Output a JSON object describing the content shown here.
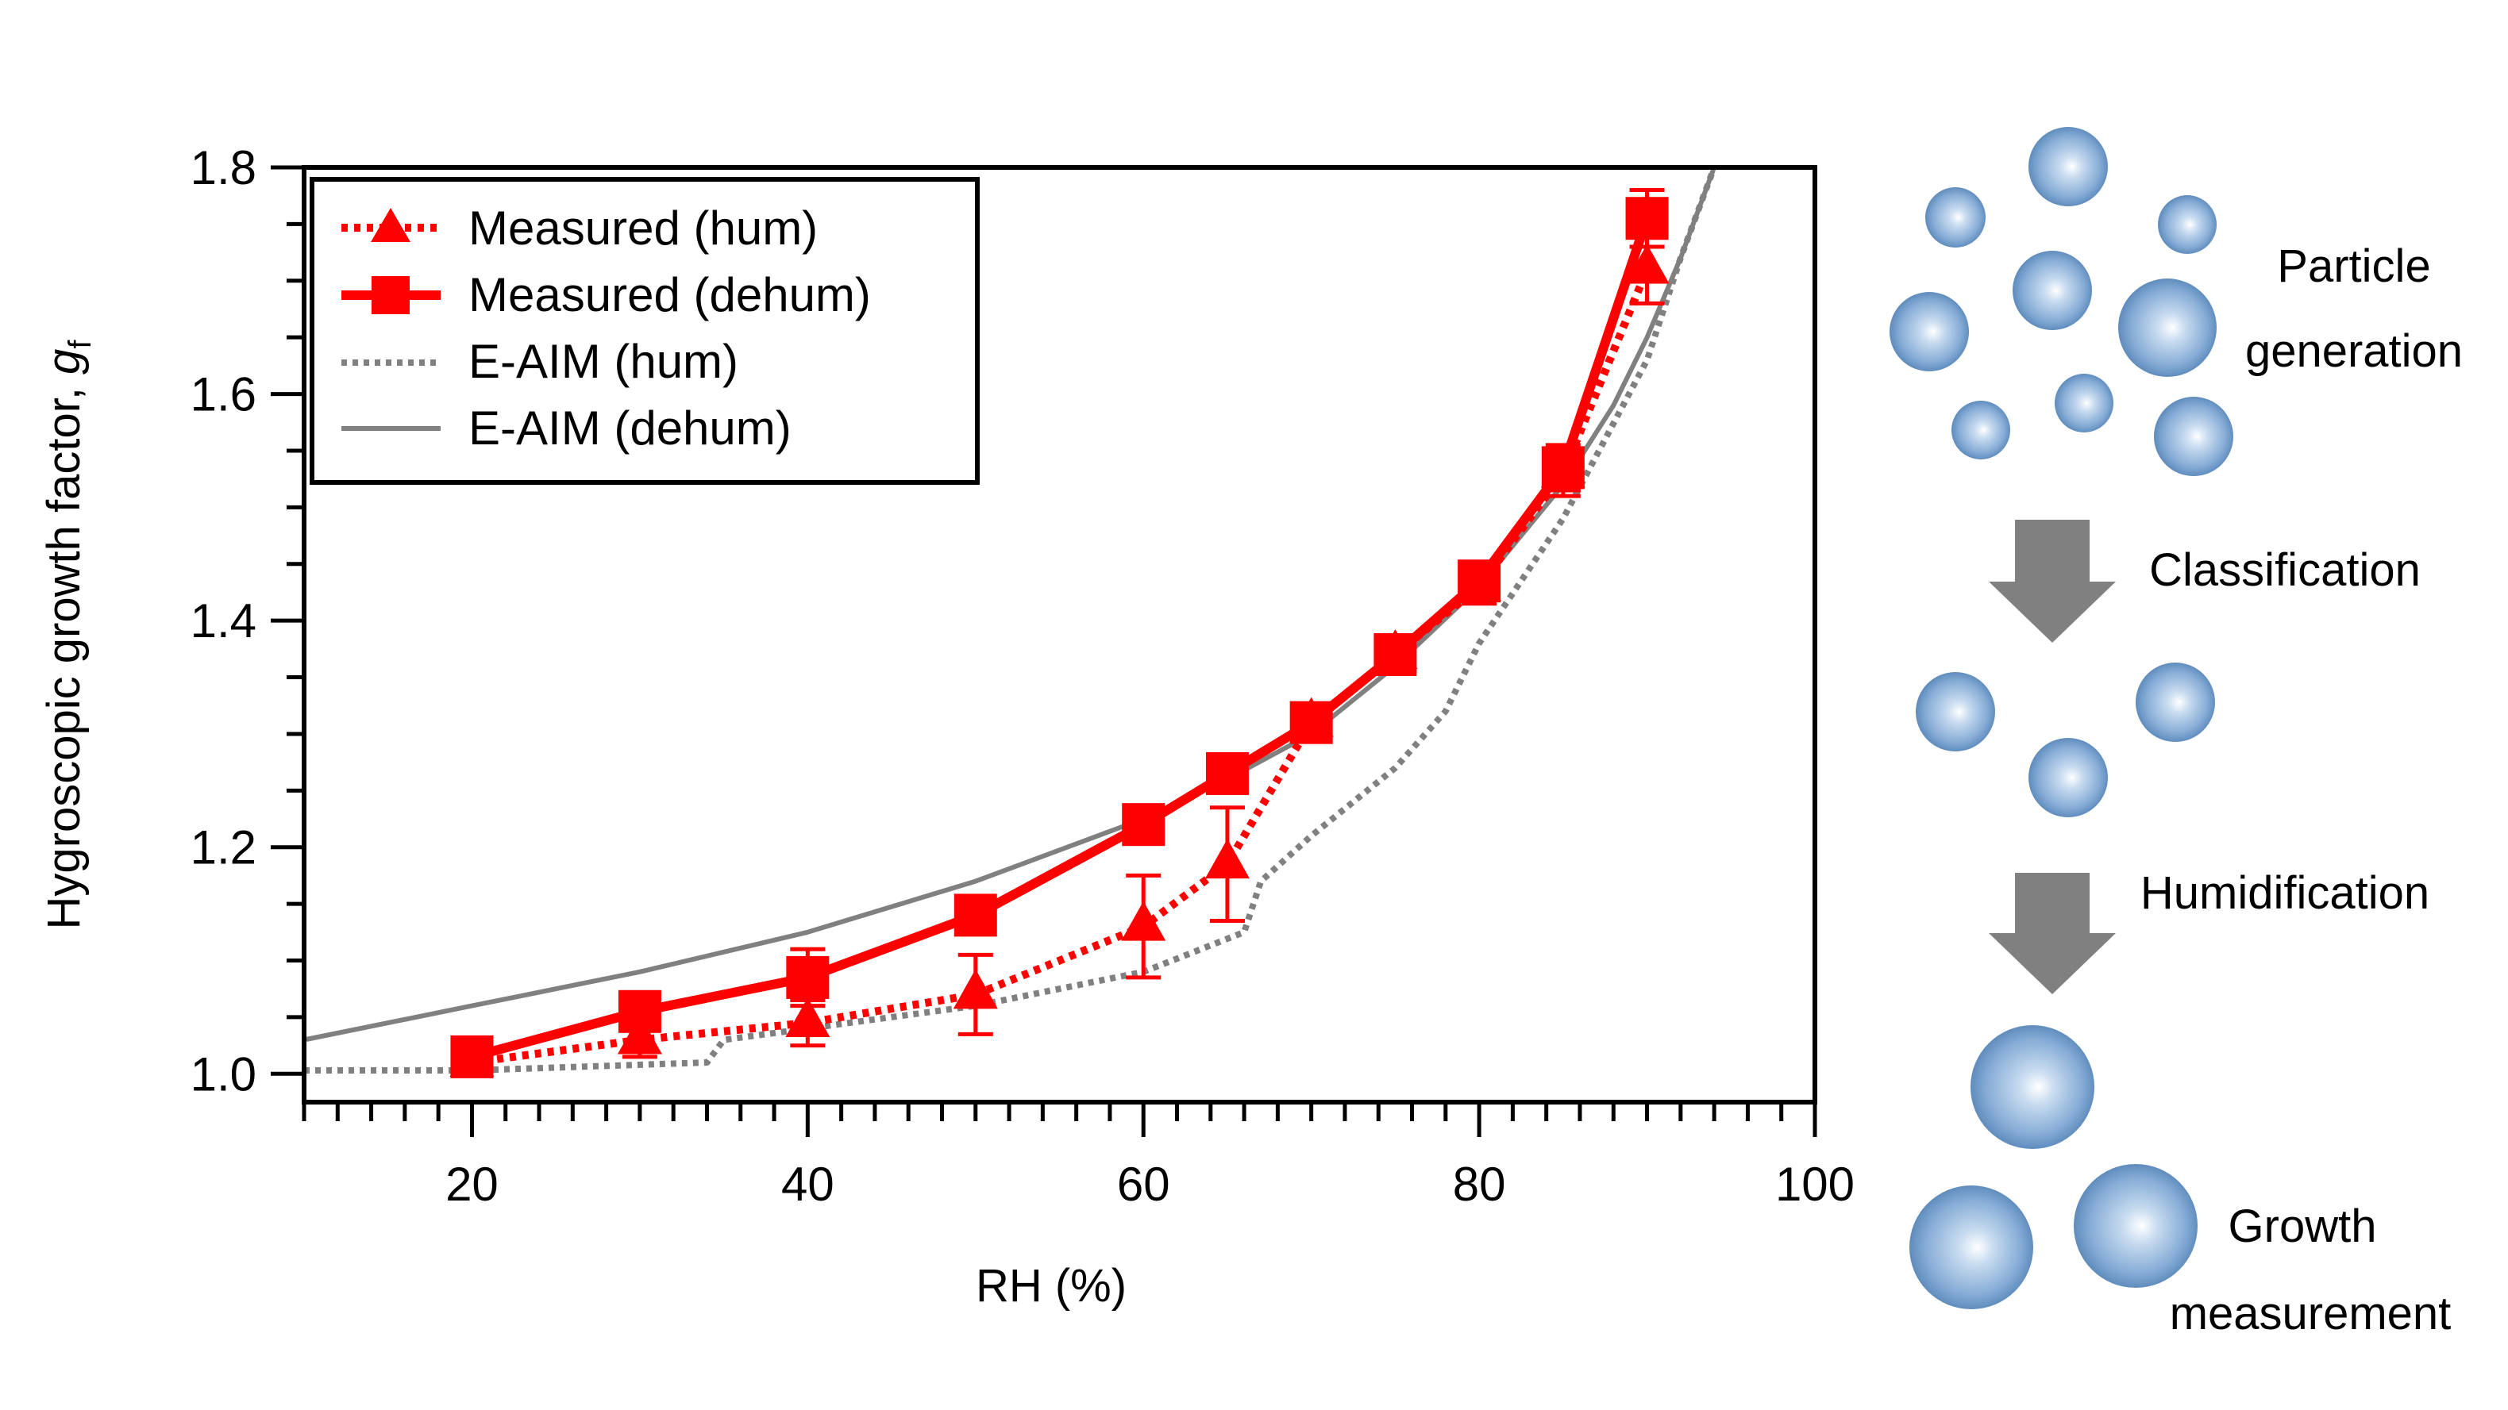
{
  "chart_data": {
    "type": "line",
    "xlabel": "RH (%)",
    "ylabel": "Hygroscopic growth factor, ",
    "ylabel_symbol": "g",
    "ylabel_subscript": "f",
    "xlim": [
      10,
      100
    ],
    "ylim": [
      0.975,
      1.8
    ],
    "xticks": [
      "20",
      "40",
      "60",
      "80",
      "100"
    ],
    "yticks": [
      "1.0",
      "1.2",
      "1.4",
      "1.6",
      "1.8"
    ],
    "grid": false,
    "legend_position": "top-left",
    "series": [
      {
        "name": "Measured (hum)",
        "style": "dotted",
        "marker": "triangle",
        "color": "#ff0000",
        "points": [
          {
            "x": 20,
            "y": 1.01,
            "err": 0.01
          },
          {
            "x": 30,
            "y": 1.03,
            "err": 0.015
          },
          {
            "x": 40,
            "y": 1.045,
            "err": 0.02
          },
          {
            "x": 50,
            "y": 1.07,
            "err": 0.035
          },
          {
            "x": 60,
            "y": 1.13,
            "err": 0.045
          },
          {
            "x": 65,
            "y": 1.185,
            "err": 0.05
          },
          {
            "x": 70,
            "y": 1.31,
            "err": 0.015
          },
          {
            "x": 75,
            "y": 1.37,
            "err": 0.015
          },
          {
            "x": 80,
            "y": 1.43,
            "err": 0.015
          },
          {
            "x": 85,
            "y": 1.53,
            "err": 0.02
          },
          {
            "x": 90,
            "y": 1.71,
            "err": 0.03
          }
        ]
      },
      {
        "name": "Measured (dehum)",
        "style": "solid",
        "marker": "square",
        "color": "#ff0000",
        "points": [
          {
            "x": 20,
            "y": 1.015,
            "err": 0.01
          },
          {
            "x": 30,
            "y": 1.055,
            "err": 0.015
          },
          {
            "x": 40,
            "y": 1.085,
            "err": 0.025
          },
          {
            "x": 50,
            "y": 1.14,
            "err": 0.01
          },
          {
            "x": 60,
            "y": 1.22,
            "err": 0.01
          },
          {
            "x": 65,
            "y": 1.265,
            "err": 0.01
          },
          {
            "x": 70,
            "y": 1.31,
            "err": 0.01
          },
          {
            "x": 75,
            "y": 1.37,
            "err": 0.015
          },
          {
            "x": 80,
            "y": 1.435,
            "err": 0.015
          },
          {
            "x": 85,
            "y": 1.535,
            "err": 0.02
          },
          {
            "x": 90,
            "y": 1.755,
            "err": 0.025
          }
        ]
      },
      {
        "name": "E-AIM (hum)",
        "style": "dotted",
        "marker": "none",
        "color": "#808080",
        "x": [
          10,
          20,
          30,
          34,
          35,
          40,
          50,
          60,
          66,
          67,
          70,
          75,
          78,
          80,
          85,
          90,
          92,
          94
        ],
        "y": [
          1.003,
          1.003,
          1.008,
          1.01,
          1.03,
          1.04,
          1.06,
          1.09,
          1.125,
          1.17,
          1.21,
          1.27,
          1.32,
          1.38,
          1.49,
          1.63,
          1.72,
          1.8
        ]
      },
      {
        "name": "E-AIM (dehum)",
        "style": "solid",
        "marker": "none",
        "color": "#808080",
        "x": [
          10,
          20,
          30,
          40,
          50,
          60,
          65,
          70,
          75,
          80,
          85,
          88,
          90,
          92,
          94
        ],
        "y": [
          1.03,
          1.06,
          1.09,
          1.125,
          1.17,
          1.225,
          1.26,
          1.3,
          1.36,
          1.43,
          1.52,
          1.59,
          1.65,
          1.72,
          1.8
        ]
      }
    ]
  },
  "schematic": {
    "steps": [
      {
        "label_lines": [
          "Particle",
          "generation"
        ]
      },
      {
        "label_lines": [
          "Classification"
        ]
      },
      {
        "label_lines": [
          "Humidification"
        ]
      },
      {
        "label_lines": [
          "Growth",
          "measurement"
        ]
      }
    ],
    "bubble_color": "#7aa7d3"
  }
}
